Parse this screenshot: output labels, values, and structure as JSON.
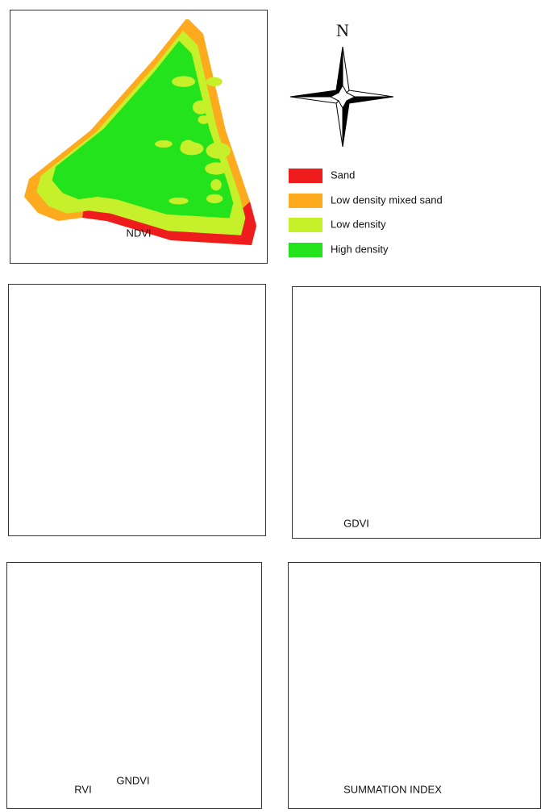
{
  "compass": {
    "north": "N"
  },
  "legend": {
    "items": [
      {
        "label": "Sand",
        "color": "#ee1c1c"
      },
      {
        "label": "Low density mixed sand",
        "color": "#fdaa1e"
      },
      {
        "label": "Low density",
        "color": "#c6f02a"
      },
      {
        "label": "High density",
        "color": "#22e31c"
      }
    ]
  },
  "panels": [
    {
      "label": "NDVI"
    },
    {
      "label": "GNDVI"
    },
    {
      "label": "GDVI"
    },
    {
      "label": "RVI"
    },
    {
      "label": "SUMMATION INDEX"
    }
  ]
}
